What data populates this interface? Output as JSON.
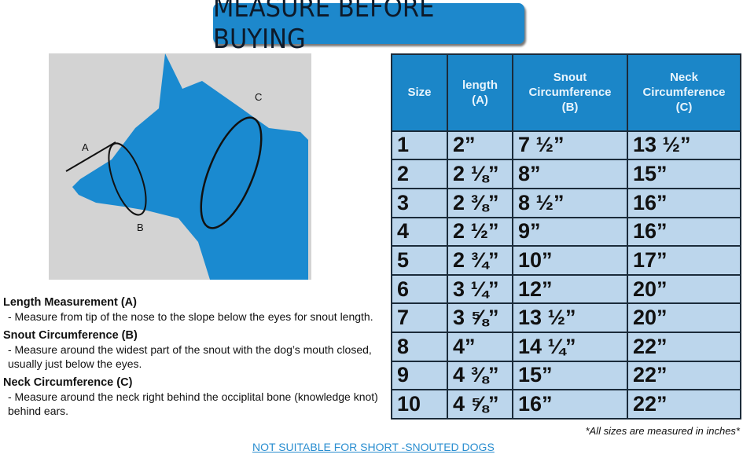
{
  "title": "MEASURE BEFORE BUYING",
  "diagram": {
    "labels": [
      "A",
      "B",
      "C"
    ],
    "colors": {
      "dog": "#1a8ad0",
      "background": "#d3d3d3"
    }
  },
  "table": {
    "headers": [
      [
        "Size"
      ],
      [
        "length",
        "(A)"
      ],
      [
        "Snout",
        "Circumference",
        "(B)"
      ],
      [
        "Neck",
        "Circumference",
        "(C)"
      ]
    ],
    "rows": [
      [
        "1",
        "2”",
        "7 ½”",
        "13 ½”"
      ],
      [
        "2",
        "2 ⅛”",
        "8”",
        "15”"
      ],
      [
        "3",
        "2 ⅜”",
        "8 ½”",
        "16”"
      ],
      [
        "4",
        "2 ½”",
        "9”",
        "16”"
      ],
      [
        "5",
        "2 ¾”",
        "10”",
        "17”"
      ],
      [
        "6",
        "3 ¼”",
        "12”",
        "20”"
      ],
      [
        "7",
        "3 ⅝”",
        "13 ½”",
        "20”"
      ],
      [
        "8",
        "4”",
        "14 ¼”",
        "22”"
      ],
      [
        "9",
        "4 ⅜”",
        "15”",
        "22”"
      ],
      [
        "10",
        "4 ⅝”",
        "16”",
        "22”"
      ]
    ]
  },
  "notes": [
    {
      "title": "Length Measurement (A)",
      "text": "- Measure from tip of the nose to the slope below the eyes for snout length."
    },
    {
      "title": "Snout Circumference (B)",
      "text": "- Measure around the widest part of the snout with the dog’s mouth closed, usually just below the eyes."
    },
    {
      "title": "Neck Circumference (C)",
      "text": "- Measure around the neck right behind the occiplital bone (knowledge knot) behind ears."
    }
  ],
  "footnote": "*All sizes are measured in inches*",
  "warning": "NOT SUITABLE FOR SHORT -SNOUTED DOGS"
}
